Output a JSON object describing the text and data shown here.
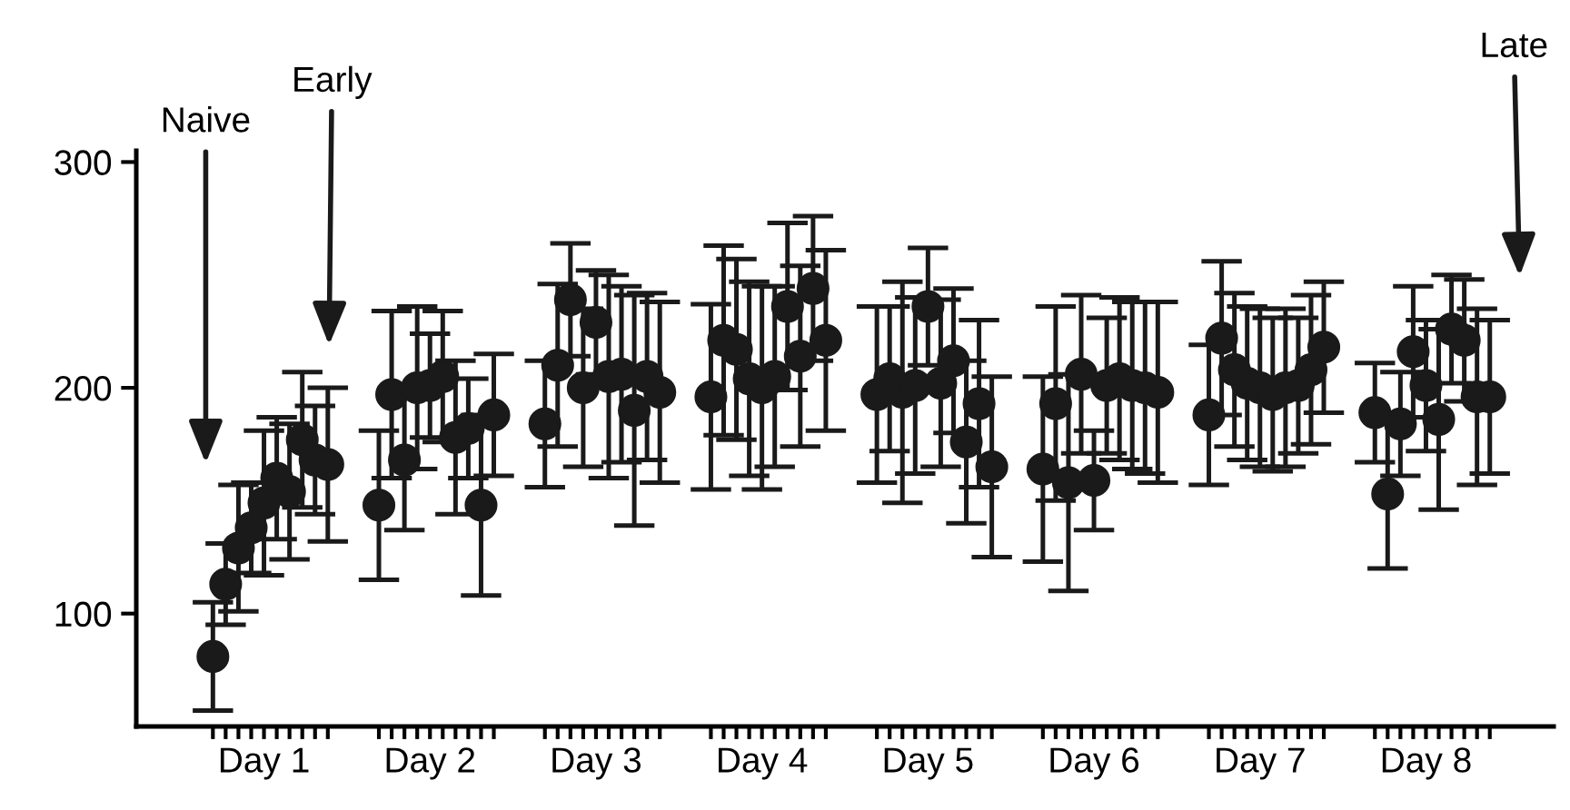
{
  "chart_data": {
    "type": "scatter",
    "categories": [
      null,
      null,
      null,
      null,
      "Day 1",
      null,
      null,
      null,
      null,
      null,
      null,
      null,
      null,
      null,
      null,
      null,
      null,
      "Day 2",
      null,
      null,
      null,
      null,
      null,
      null,
      null,
      null,
      null,
      null,
      null,
      null,
      "Day 3",
      null,
      null,
      null,
      null,
      null,
      null,
      null,
      null,
      null,
      null,
      null,
      null,
      "Day 4",
      null,
      null,
      null,
      null,
      null,
      null,
      null,
      null,
      null,
      null,
      null,
      null,
      "Day 5",
      null,
      null,
      null,
      null,
      null,
      null,
      null,
      null,
      null,
      null,
      null,
      null,
      "Day 6",
      null,
      null,
      null,
      null,
      null,
      null,
      null,
      null,
      null,
      null,
      null,
      null,
      "Day 7",
      null,
      null,
      null,
      null,
      null,
      null,
      null,
      null,
      null,
      null,
      null,
      null,
      "Day 8",
      null,
      null,
      null,
      null,
      null
    ],
    "series": [
      {
        "color": "#1a1a1a",
        "values": [
          81,
          113,
          129,
          138,
          149,
          160,
          154,
          177,
          168,
          166,
          null,
          null,
          null,
          148,
          197,
          168,
          200,
          201,
          205,
          178,
          182,
          148,
          188,
          null,
          null,
          null,
          184,
          210,
          239,
          200,
          229,
          205,
          206,
          190,
          205,
          198,
          null,
          null,
          null,
          196,
          221,
          217,
          204,
          200,
          205,
          236,
          214,
          244,
          221,
          null,
          null,
          null,
          197,
          204,
          198,
          201,
          236,
          202,
          212,
          176,
          193,
          165,
          null,
          null,
          null,
          164,
          193,
          158,
          206,
          159,
          201,
          204,
          201,
          200,
          198,
          null,
          null,
          null,
          188,
          222,
          208,
          202,
          200,
          197,
          200,
          201,
          208,
          218,
          null,
          null,
          null,
          189,
          153,
          184,
          216,
          201,
          186,
          226,
          221,
          196,
          196
        ],
        "errors": [
          24,
          18,
          28,
          20,
          32,
          27,
          30,
          30,
          24,
          34,
          null,
          null,
          null,
          33,
          37,
          31,
          36,
          23,
          29,
          34,
          22,
          40,
          27,
          null,
          null,
          null,
          28,
          36,
          25,
          35,
          23,
          45,
          39,
          51,
          37,
          40,
          null,
          null,
          null,
          41,
          42,
          40,
          43,
          45,
          40,
          37,
          40,
          32,
          40,
          null,
          null,
          null,
          39,
          32,
          49,
          39,
          26,
          37,
          32,
          36,
          37,
          40,
          null,
          null,
          null,
          41,
          43,
          48,
          35,
          22,
          30,
          36,
          37,
          38,
          40,
          null,
          null,
          null,
          31,
          34,
          34,
          34,
          35,
          34,
          35,
          30,
          33,
          29,
          null,
          null,
          null,
          22,
          33,
          23,
          29,
          29,
          40,
          24,
          27,
          39,
          34
        ]
      }
    ],
    "marker": "circle",
    "ylim": [
      50,
      305
    ],
    "yticks": [
      100,
      200,
      300
    ],
    "annotations": [
      "Naive",
      "Early",
      "Late"
    ],
    "grid": false
  }
}
